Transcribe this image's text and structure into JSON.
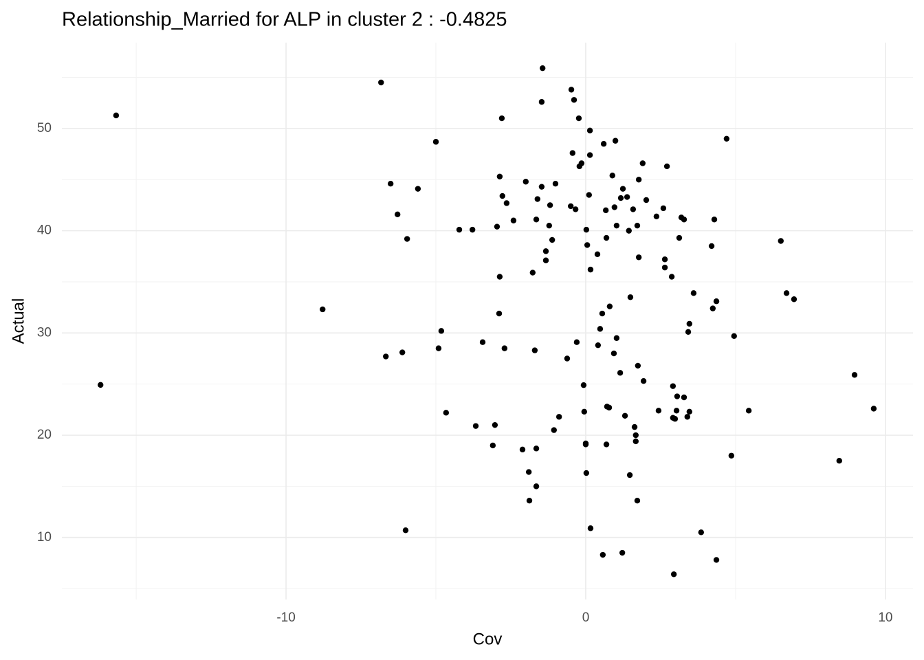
{
  "chart_data": {
    "type": "scatter",
    "title": "Relationship_Married for ALP in cluster 2 : -0.4825",
    "x_label": "Cov",
    "y_label": "Actual",
    "xlim": [
      -17.48,
      10.92
    ],
    "ylim": [
      3.93,
      58.4
    ],
    "xticks": [
      -10,
      0,
      10
    ],
    "yticks": [
      10,
      20,
      30,
      40,
      50
    ],
    "x_minor_grid": [
      -15,
      -5,
      5
    ],
    "y_minor_grid": [
      5,
      15,
      25,
      35,
      45,
      55
    ],
    "grid": true,
    "color": "#000000",
    "x": [
      -15.67,
      -16.19,
      -8.78,
      -6.83,
      -6.51,
      -6.28,
      -5.96,
      -5.6,
      -6.67,
      -6.12,
      -6.01,
      -5.0,
      -4.82,
      -4.91,
      -4.66,
      -4.22,
      -3.78,
      -3.67,
      -3.44,
      -3.03,
      -3.1,
      -2.96,
      -2.87,
      -2.8,
      -2.78,
      -2.64,
      -2.87,
      -2.89,
      -2.71,
      -2.41,
      -2.11,
      -2.0,
      -1.9,
      -1.88,
      -1.77,
      -1.7,
      -1.65,
      -1.61,
      -1.65,
      -1.65,
      -1.47,
      -1.44,
      -1.47,
      -1.33,
      -1.33,
      -1.19,
      -1.22,
      -1.12,
      -1.01,
      -1.06,
      -0.89,
      -0.62,
      -0.5,
      -0.48,
      -0.39,
      -0.44,
      -0.34,
      -0.3,
      -0.23,
      -0.21,
      -0.14,
      -0.07,
      -0.05,
      0.0,
      0.0,
      0.02,
      0.05,
      0.02,
      0.11,
      0.14,
      0.14,
      0.16,
      0.16,
      0.39,
      0.41,
      0.48,
      0.55,
      0.6,
      0.57,
      0.67,
      0.69,
      0.71,
      0.78,
      0.69,
      0.8,
      0.89,
      0.94,
      0.96,
      0.99,
      1.03,
      1.03,
      1.15,
      1.17,
      1.24,
      1.22,
      1.31,
      1.38,
      1.44,
      1.49,
      1.47,
      1.58,
      1.63,
      1.67,
      1.67,
      1.72,
      1.74,
      1.77,
      1.77,
      1.72,
      1.9,
      1.93,
      2.02,
      2.36,
      2.43,
      2.59,
      2.64,
      2.64,
      2.71,
      2.87,
      2.91,
      2.91,
      2.98,
      2.94,
      3.03,
      3.05,
      3.12,
      3.19,
      3.28,
      3.28,
      3.39,
      3.46,
      3.42,
      3.46,
      3.6,
      3.85,
      4.2,
      4.24,
      4.29,
      4.36,
      4.36,
      4.7,
      4.86,
      4.95,
      5.44,
      6.51,
      6.7,
      6.95,
      8.46,
      8.97,
      9.61
    ],
    "y": [
      51.28,
      24.92,
      32.31,
      54.5,
      44.6,
      41.6,
      39.2,
      44.1,
      27.7,
      28.1,
      10.7,
      48.7,
      30.2,
      28.5,
      22.2,
      40.1,
      40.1,
      20.9,
      29.1,
      21.0,
      19.0,
      40.4,
      45.3,
      51.0,
      43.4,
      42.7,
      35.5,
      31.9,
      28.5,
      41.0,
      18.6,
      44.8,
      16.4,
      13.6,
      35.9,
      28.3,
      41.1,
      43.1,
      18.7,
      15.0,
      52.6,
      55.9,
      44.3,
      38.0,
      37.1,
      42.5,
      40.5,
      39.1,
      44.6,
      20.5,
      21.8,
      27.5,
      42.4,
      53.8,
      52.8,
      47.6,
      42.1,
      29.1,
      51.0,
      46.3,
      46.6,
      24.9,
      22.3,
      19.1,
      19.2,
      40.1,
      38.6,
      16.3,
      43.5,
      49.8,
      47.4,
      36.2,
      10.9,
      37.7,
      28.8,
      30.4,
      31.9,
      48.5,
      8.3,
      42.0,
      39.3,
      22.8,
      22.7,
      19.1,
      32.6,
      45.4,
      28.0,
      42.3,
      48.8,
      40.5,
      29.5,
      26.1,
      43.2,
      44.1,
      8.5,
      21.9,
      43.3,
      40.0,
      33.5,
      16.1,
      42.1,
      20.8,
      20.0,
      19.4,
      40.5,
      26.8,
      45.0,
      37.4,
      13.6,
      46.6,
      25.3,
      43.0,
      41.4,
      22.4,
      42.2,
      37.2,
      36.4,
      46.3,
      35.5,
      24.8,
      21.7,
      21.6,
      6.4,
      22.4,
      23.8,
      39.3,
      41.3,
      41.1,
      23.7,
      21.8,
      22.3,
      30.1,
      30.9,
      33.9,
      10.5,
      38.5,
      32.4,
      41.1,
      33.1,
      7.8,
      49.0,
      18.0,
      29.7,
      22.4,
      39.0,
      33.9,
      33.3,
      17.5,
      25.9,
      22.6
    ]
  }
}
